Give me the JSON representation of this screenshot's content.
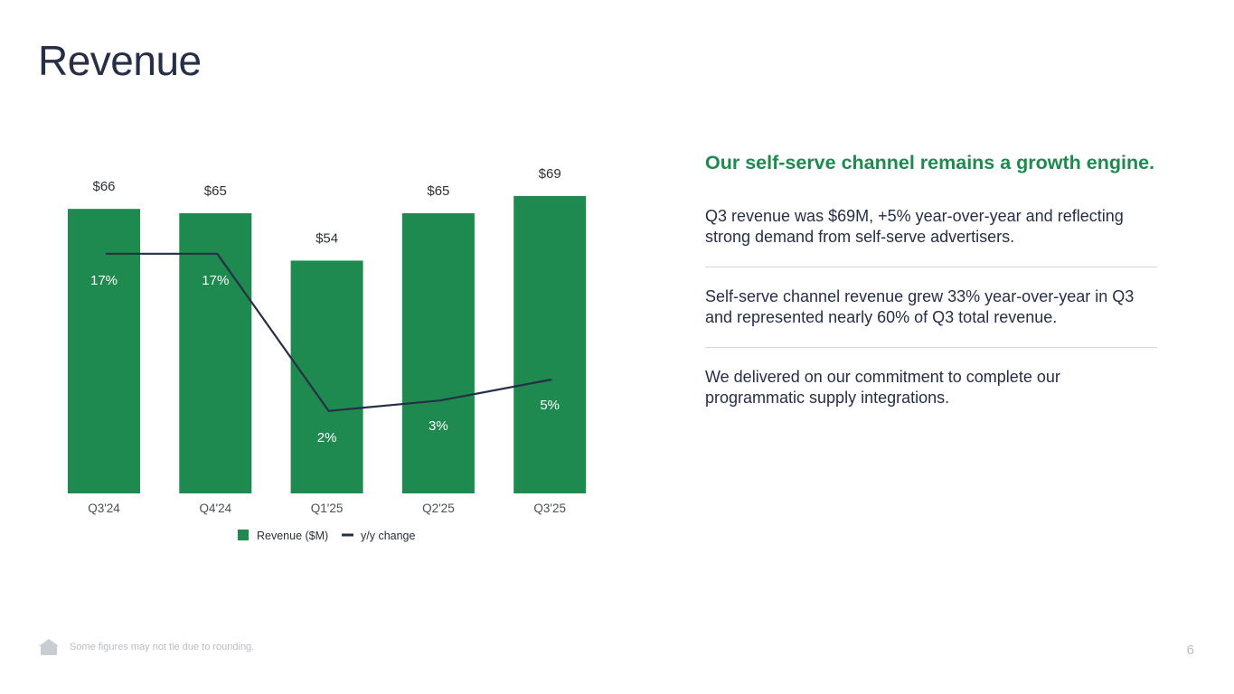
{
  "title": "Revenue",
  "colors": {
    "bar": "#1e8a4f",
    "line": "#262f45",
    "headline": "#1e8a4f"
  },
  "chart_data": {
    "type": "bar",
    "categories": [
      "Q3'24",
      "Q4'24",
      "Q1'25",
      "Q2'25",
      "Q3'25"
    ],
    "series": [
      {
        "name": "Revenue ($M)",
        "type": "bar",
        "values": [
          66,
          65,
          54,
          65,
          69
        ],
        "labels": [
          "$66",
          "$65",
          "$54",
          "$65",
          "$69"
        ]
      },
      {
        "name": "y/y change",
        "type": "line",
        "values": [
          17,
          17,
          2,
          3,
          5
        ],
        "labels": [
          "17%",
          "17%",
          "2%",
          "3%",
          "5%"
        ]
      }
    ],
    "legend": "bottom",
    "grid": false
  },
  "side": {
    "headline": "Our self-serve channel remains a growth engine.",
    "paragraphs": [
      "Q3 revenue was $69M, +5% year-over-year and reflecting strong demand from self-serve advertisers.",
      "Self-serve channel revenue grew 33% year-over-year in Q3 and represented nearly 60% of Q3 total revenue.",
      "We delivered on our commitment to complete our programmatic supply integrations."
    ]
  },
  "footer": {
    "icon": "house-icon",
    "note": "Some figures may not tie due to rounding.",
    "page_number": "6"
  }
}
